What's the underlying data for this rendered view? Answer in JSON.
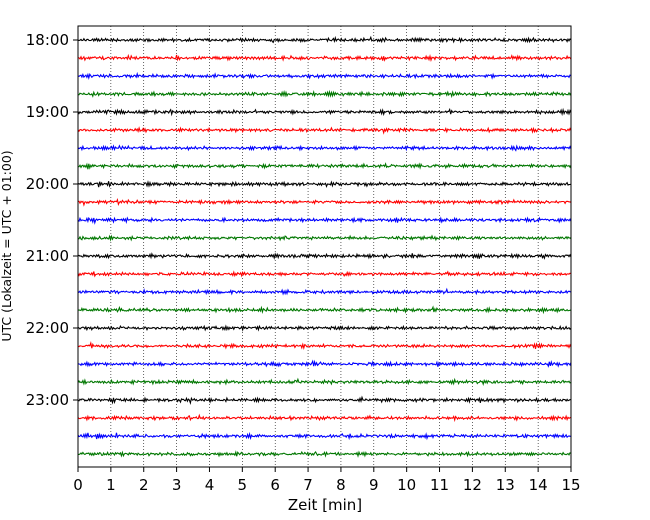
{
  "chart_data": {
    "type": "line",
    "title": "",
    "xlabel": "Zeit  [min]",
    "ylabel": "UTC (Lokalzeit = UTC + 01:00)",
    "xlim": [
      0,
      15
    ],
    "x_ticks": [
      0,
      1,
      2,
      3,
      4,
      5,
      6,
      7,
      8,
      9,
      10,
      11,
      12,
      13,
      14,
      15
    ],
    "y_tick_labels": [
      "18:00",
      "19:00",
      "20:00",
      "21:00",
      "22:00",
      "23:00"
    ],
    "trace_interval_minutes": 15,
    "start_time": "18:00",
    "trace_count": 24,
    "trace_colors": [
      "#000000",
      "#ff0000",
      "#0000ff",
      "#007700"
    ],
    "grid": "vertical dotted",
    "legend": "none"
  }
}
